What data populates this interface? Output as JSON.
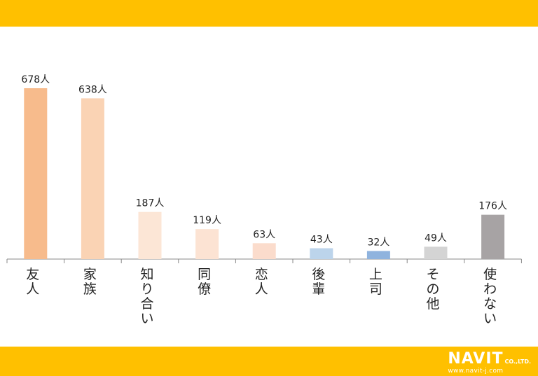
{
  "logo": {
    "main": "NAVIT",
    "co": "CO.,LTD.",
    "url": "www.navit-j.com"
  },
  "chart_data": {
    "type": "bar",
    "categories": [
      "友人",
      "家族",
      "知り合い",
      "同僚",
      "恋人",
      "後輩",
      "上司",
      "その他",
      "使わない"
    ],
    "values": [
      678,
      638,
      187,
      119,
      63,
      43,
      32,
      49,
      176
    ],
    "value_labels": [
      "678人",
      "638人",
      "187人",
      "119人",
      "63人",
      "43人",
      "32人",
      "49人",
      "176人"
    ],
    "colors": [
      "#F7BB8C",
      "#FAD3B4",
      "#FCE6D6",
      "#FCE3D3",
      "#FBDCCC",
      "#BCD4EB",
      "#8FB3DE",
      "#D4D4D4",
      "#A7A3A4"
    ],
    "title": "",
    "xlabel": "",
    "ylabel": "",
    "ylim": [
      0,
      700
    ],
    "grid": false,
    "legend": "none"
  }
}
